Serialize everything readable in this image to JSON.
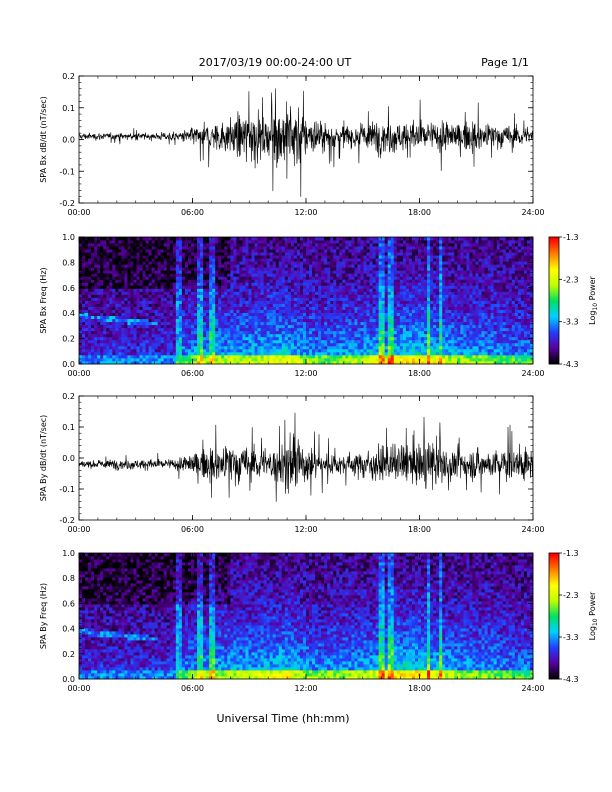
{
  "header": {
    "title": "2017/03/19  00:00-24:00 UT",
    "page": "Page 1/1"
  },
  "footer": {
    "xlabel": "Universal Time (hh:mm)"
  },
  "colors": {
    "trace": "#000000",
    "spectrogram_low": "#000000",
    "spectrogram_mid": "#2a1a80",
    "colorbar": [
      "#000000",
      "#5a00a0",
      "#2040ff",
      "#00d0ff",
      "#00e060",
      "#c0ff00",
      "#ffff00",
      "#ff8000",
      "#ff0000"
    ]
  },
  "chart_data": [
    {
      "type": "line",
      "ylabel": "SPA Bx dB/dt (nT/sec)",
      "xlim": [
        "00:00",
        "24:00"
      ],
      "ylim": [
        -0.2,
        0.2
      ],
      "x_ticks": [
        "00:00",
        "06:00",
        "12:00",
        "18:00",
        "24:00"
      ],
      "y_ticks": [
        "-0.2",
        "-0.1",
        "0.0",
        "0.1",
        "0.2"
      ],
      "series": [
        {
          "x_hours": [
            0,
            2,
            4,
            5.5,
            6,
            7,
            8,
            9,
            10,
            10.5,
            11,
            11.5,
            12,
            13,
            14,
            15,
            16,
            17,
            18,
            19,
            20,
            21,
            22,
            23,
            24
          ],
          "envelope_half_amplitude": [
            0.02,
            0.02,
            0.02,
            0.03,
            0.05,
            0.08,
            0.1,
            0.16,
            0.12,
            0.18,
            0.2,
            0.2,
            0.12,
            0.08,
            0.07,
            0.08,
            0.1,
            0.09,
            0.1,
            0.09,
            0.08,
            0.09,
            0.07,
            0.06,
            0.05
          ],
          "baseline": 0.01
        }
      ]
    },
    {
      "type": "heatmap",
      "ylabel": "SPA Bx Freq (Hz)",
      "xlim": [
        "00:00",
        "24:00"
      ],
      "ylim": [
        0.0,
        1.0
      ],
      "x_ticks": [
        "00:00",
        "06:00",
        "12:00",
        "18:00",
        "24:00"
      ],
      "y_ticks": [
        "0.0",
        "0.2",
        "0.4",
        "0.6",
        "0.8",
        "1.0"
      ],
      "colorbar": {
        "label": "Log10 Power",
        "label_text": "Log",
        "label_sub": "10",
        "label_rest": " Power",
        "range": [
          -4.3,
          -1.3
        ],
        "ticks": [
          "-1.3",
          "-2.3",
          "-3.3",
          "-4.3"
        ]
      },
      "activity_hours": [
        5.5,
        6,
        7,
        8,
        9,
        10,
        11,
        12,
        13,
        14,
        15,
        16,
        17,
        18,
        19,
        20,
        21,
        22,
        23
      ],
      "activity_level": [
        0.5,
        0.55,
        0.6,
        0.65,
        0.65,
        0.7,
        0.75,
        0.6,
        0.55,
        0.6,
        0.65,
        0.7,
        0.75,
        0.8,
        0.7,
        0.6,
        0.6,
        0.55,
        0.5
      ],
      "vertical_lines_hours": [
        5.3,
        6.4,
        7.0,
        16.0,
        16.5,
        18.5,
        19.1
      ]
    },
    {
      "type": "line",
      "ylabel": "SPA By dB/dt (nT/sec)",
      "xlim": [
        "00:00",
        "24:00"
      ],
      "ylim": [
        -0.2,
        0.2
      ],
      "x_ticks": [
        "00:00",
        "06:00",
        "12:00",
        "18:00",
        "24:00"
      ],
      "y_ticks": [
        "-0.2",
        "-0.1",
        "0.0",
        "0.1",
        "0.2"
      ],
      "series": [
        {
          "x_hours": [
            0,
            2,
            4,
            5.5,
            6,
            7,
            8,
            9,
            10,
            10.5,
            11,
            11.5,
            12,
            13,
            14,
            15,
            16,
            17,
            18,
            19,
            20,
            21,
            22,
            23,
            24
          ],
          "envelope_half_amplitude": [
            0.02,
            0.03,
            0.03,
            0.04,
            0.07,
            0.1,
            0.12,
            0.1,
            0.09,
            0.13,
            0.17,
            0.2,
            0.1,
            0.07,
            0.06,
            0.08,
            0.1,
            0.12,
            0.13,
            0.15,
            0.1,
            0.09,
            0.08,
            0.11,
            0.09
          ],
          "baseline": -0.02
        }
      ]
    },
    {
      "type": "heatmap",
      "ylabel": "SPA By Freq (Hz)",
      "xlim": [
        "00:00",
        "24:00"
      ],
      "ylim": [
        0.0,
        1.0
      ],
      "x_ticks": [
        "00:00",
        "06:00",
        "12:00",
        "18:00",
        "24:00"
      ],
      "y_ticks": [
        "0.0",
        "0.2",
        "0.4",
        "0.6",
        "0.8",
        "1.0"
      ],
      "colorbar": {
        "label": "Log10 Power",
        "label_text": "Log",
        "label_sub": "10",
        "label_rest": " Power",
        "range": [
          -4.3,
          -1.3
        ],
        "ticks": [
          "-1.3",
          "-2.3",
          "-3.3",
          "-4.3"
        ]
      },
      "activity_hours": [
        5.5,
        6,
        7,
        8,
        9,
        10,
        11,
        12,
        13,
        14,
        15,
        16,
        17,
        18,
        19,
        20,
        21,
        22,
        23
      ],
      "activity_level": [
        0.5,
        0.55,
        0.6,
        0.65,
        0.65,
        0.7,
        0.75,
        0.6,
        0.55,
        0.6,
        0.65,
        0.7,
        0.8,
        0.8,
        0.7,
        0.6,
        0.6,
        0.55,
        0.5
      ],
      "vertical_lines_hours": [
        5.3,
        6.4,
        7.0,
        16.0,
        16.5,
        18.5,
        19.1
      ]
    }
  ]
}
